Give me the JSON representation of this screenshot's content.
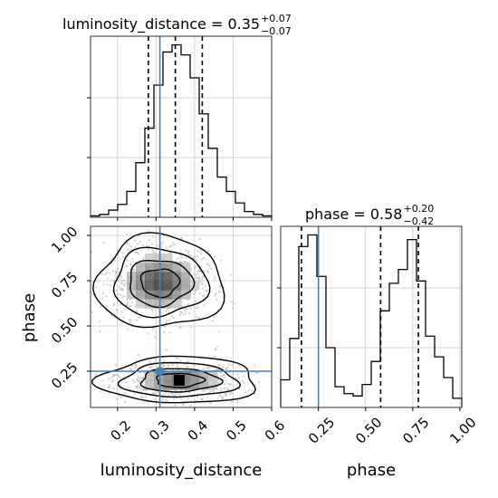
{
  "chart_data": {
    "type": "corner",
    "parameters": [
      "luminosity_distance",
      "phase"
    ],
    "truths": {
      "luminosity_distance": 0.31,
      "phase": 0.25
    },
    "truth_color": "#4682b4",
    "x_tick_labels": {
      "luminosity_distance": [
        "0.2",
        "0.3",
        "0.4",
        "0.5",
        "0.6"
      ],
      "phase": [
        "0.25",
        "0.50",
        "0.75",
        "1.00"
      ]
    },
    "y_tick_labels": {
      "phase": [
        "0.25",
        "0.50",
        "0.75",
        "1.00"
      ]
    },
    "xlabel": {
      "luminosity_distance": "luminosity_distance",
      "phase": "phase"
    },
    "ylabel": {
      "phase": "phase"
    },
    "titles": [
      {
        "name": "luminosity_distance",
        "median": "0.35",
        "plus": "+0.07",
        "minus": "−0.07",
        "prefix": "luminosity_distance = 0.35"
      },
      {
        "name": "phase",
        "median": "0.58",
        "plus": "+0.20",
        "minus": "−0.42",
        "prefix": "phase = 0.58"
      }
    ],
    "histograms": {
      "luminosity_distance": {
        "xlim": [
          0.13,
          0.6
        ],
        "quantiles": [
          0.28,
          0.35,
          0.42
        ],
        "bin_edges": [
          0.13,
          0.1535,
          0.177,
          0.2005,
          0.224,
          0.2475,
          0.271,
          0.2945,
          0.318,
          0.3415,
          0.365,
          0.3885,
          0.412,
          0.4355,
          0.459,
          0.4825,
          0.506,
          0.5295,
          0.553,
          0.5765,
          0.6
        ],
        "counts": [
          1,
          2,
          5,
          9,
          18,
          38,
          62,
          92,
          115,
          120,
          113,
          97,
          72,
          48,
          28,
          18,
          10,
          4,
          2,
          1
        ]
      },
      "phase": {
        "xlim": [
          0.05,
          1.01
        ],
        "quantiles": [
          0.16,
          0.58,
          0.78
        ],
        "bin_edges": [
          0.05,
          0.098,
          0.146,
          0.194,
          0.242,
          0.29,
          0.338,
          0.386,
          0.434,
          0.482,
          0.53,
          0.578,
          0.626,
          0.674,
          0.722,
          0.77,
          0.818,
          0.866,
          0.914,
          0.962,
          1.01
        ],
        "counts": [
          12,
          30,
          70,
          75,
          57,
          26,
          9,
          6,
          5,
          10,
          20,
          42,
          54,
          60,
          73,
          55,
          31,
          22,
          13,
          4
        ]
      }
    },
    "scatter_2d": {
      "x": "luminosity_distance",
      "y": "phase",
      "xlim": [
        0.13,
        0.6
      ],
      "ylim": [
        0.05,
        1.05
      ],
      "modes": [
        {
          "cx": 0.31,
          "cy": 0.74,
          "sx": 0.055,
          "sy": 0.085,
          "weight": 0.55
        },
        {
          "cx": 0.36,
          "cy": 0.2,
          "sx": 0.065,
          "sy": 0.045,
          "weight": 0.45
        }
      ]
    },
    "grid": true
  }
}
